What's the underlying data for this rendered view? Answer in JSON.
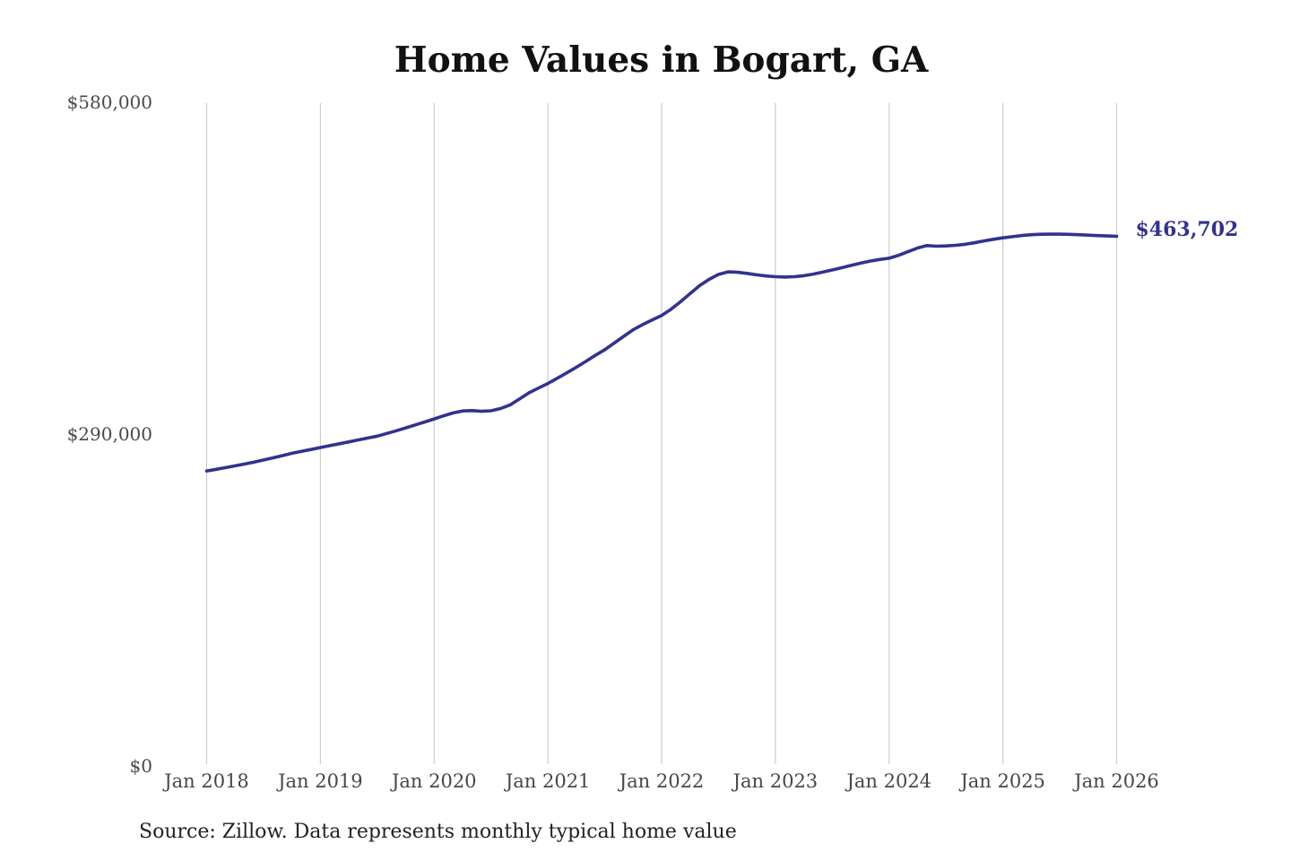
{
  "chart_data": {
    "type": "line",
    "title": "Home Values in Bogart, GA",
    "source": "Source: Zillow. Data represents monthly typical home value",
    "series_name": "Monthly typical home value",
    "end_label": "$463,702",
    "end_value": 463702,
    "line_color": "#32328f",
    "grid_color": "#cccccc",
    "x_tick_labels": [
      "Jan 2018",
      "Jan 2019",
      "Jan 2020",
      "Jan 2021",
      "Jan 2022",
      "Jan 2023",
      "Jan 2024",
      "Jan 2025",
      "Jan 2026"
    ],
    "y_ticks": [
      {
        "label": "$0",
        "value": 0
      },
      {
        "label": "$290,000",
        "value": 290000
      },
      {
        "label": "$580,000",
        "value": 580000
      }
    ],
    "ylim": [
      0,
      580000
    ],
    "x_start": "Jan 2018",
    "x_end": "Jan 2026",
    "x_interval": "monthly",
    "values": [
      258600,
      260000,
      261500,
      263000,
      264600,
      266300,
      268100,
      270000,
      272000,
      274000,
      275700,
      277300,
      279000,
      280700,
      282300,
      284000,
      285700,
      287300,
      289000,
      291300,
      293700,
      296200,
      298800,
      301400,
      304000,
      306800,
      309300,
      311000,
      311300,
      310700,
      311200,
      313100,
      316200,
      321400,
      326800,
      331000,
      335000,
      339600,
      344300,
      349200,
      354300,
      359600,
      364500,
      370300,
      376200,
      382000,
      386500,
      390500,
      394500,
      400000,
      406500,
      413500,
      420500,
      426000,
      430300,
      432600,
      432200,
      431200,
      430000,
      429000,
      428300,
      428000,
      428300,
      429200,
      430600,
      432300,
      434200,
      436200,
      438200,
      440200,
      442000,
      443400,
      444500,
      447000,
      450200,
      453400,
      455500,
      455000,
      455200,
      455800,
      456600,
      458000,
      459600,
      461000,
      462300,
      463300,
      464300,
      465000,
      465400,
      465500,
      465500,
      465300,
      465000,
      464600,
      464200,
      463900,
      463702
    ]
  }
}
